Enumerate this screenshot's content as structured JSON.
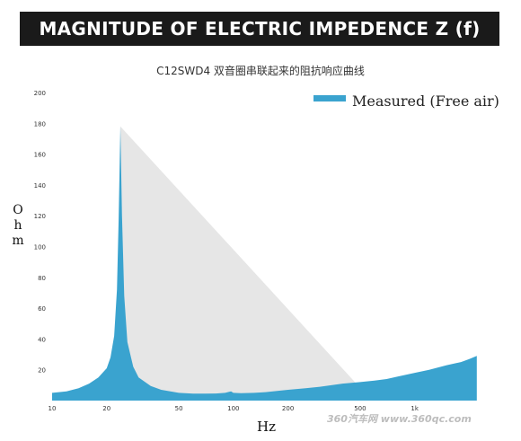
{
  "header": {
    "title": "MAGNITUDE OF ELECTRIC IMPEDENCE Z (f)"
  },
  "watermark": "360汽车网 www.360qc.com",
  "colors": {
    "series": "#3aa3cf",
    "header_bg": "#1a1a1a",
    "shadow": "#e6e6e6"
  },
  "chart_data": {
    "type": "area",
    "title": "C12SWD4 双音圈串联起来的阻抗响应曲线",
    "xlabel": "Hz",
    "ylabel": "Ohm",
    "x_scale": "log",
    "xlim": [
      10,
      2500
    ],
    "ylim": [
      0,
      200
    ],
    "x_ticks": [
      {
        "value": 10,
        "label": "10"
      },
      {
        "value": 20,
        "label": "20"
      },
      {
        "value": 50,
        "label": "50"
      },
      {
        "value": 100,
        "label": "100"
      },
      {
        "value": 200,
        "label": "200"
      },
      {
        "value": 500,
        "label": "500"
      },
      {
        "value": 1000,
        "label": "1k"
      }
    ],
    "y_ticks": [
      20,
      40,
      60,
      80,
      100,
      120,
      140,
      160,
      180,
      200
    ],
    "grid": false,
    "legend": {
      "position": "top-right",
      "entries": [
        "Measured (Free air)"
      ]
    },
    "series": [
      {
        "name": "Measured (Free air)",
        "x": [
          10,
          12,
          14,
          16,
          18,
          20,
          21,
          22,
          22.8,
          23.3,
          23.8,
          24.3,
          25,
          26,
          28,
          30,
          35,
          40,
          50,
          60,
          70,
          80,
          90,
          97,
          100,
          110,
          130,
          150,
          200,
          250,
          300,
          400,
          500,
          600,
          700,
          800,
          1000,
          1200,
          1500,
          1800,
          2000,
          2200
        ],
        "y": [
          5,
          6,
          8,
          11,
          15,
          21,
          28,
          42,
          72,
          118,
          178,
          120,
          68,
          38,
          22,
          15,
          9.5,
          7,
          5,
          4.5,
          4.5,
          4.6,
          5,
          6,
          5,
          4.8,
          5,
          5.5,
          7,
          8,
          9,
          11,
          12,
          13,
          14,
          15.5,
          18,
          20,
          23,
          25,
          27,
          29
        ]
      }
    ]
  }
}
